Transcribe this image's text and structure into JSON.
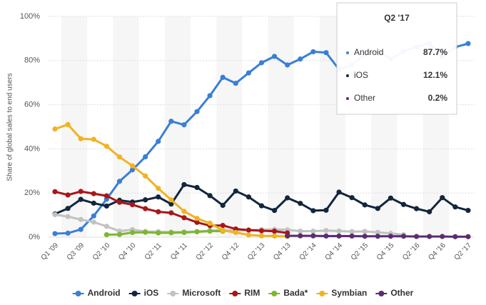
{
  "chart_data": {
    "type": "line",
    "y_axis_label": "Share of global sales to end users",
    "categories": [
      "Q1 '09",
      null,
      "Q3 '09",
      null,
      "Q2 '10",
      null,
      "Q4 '10",
      null,
      "Q2 '11",
      null,
      "Q4 '11",
      null,
      "Q2 '12",
      null,
      "Q4 '12",
      null,
      "Q2 '13",
      null,
      "Q4 '13",
      null,
      "Q2 '14",
      null,
      "Q4 '14",
      null,
      "Q2 '15",
      null,
      "Q4 '15",
      null,
      "Q2 '16",
      null,
      "Q4 '16",
      null,
      "Q2 '17"
    ],
    "ylim": [
      0,
      100
    ],
    "yticks": [
      {
        "value": 0,
        "label": "0%"
      },
      {
        "value": 20,
        "label": "20%"
      },
      {
        "value": 40,
        "label": "40%"
      },
      {
        "value": 60,
        "label": "60%"
      },
      {
        "value": 80,
        "label": "80%"
      },
      {
        "value": 100,
        "label": "100%"
      }
    ],
    "grid": true,
    "legend": "bottom",
    "series": [
      {
        "name": "Android",
        "color": "#3a7fd5",
        "values": [
          1.6,
          1.8,
          3.5,
          9.6,
          17.2,
          25.3,
          30.5,
          36.4,
          43.4,
          52.5,
          50.9,
          56.9,
          64.1,
          72.4,
          69.7,
          74.4,
          79.0,
          81.9,
          78.0,
          80.7,
          84.0,
          83.6,
          76.0,
          78.0,
          82.8,
          84.7,
          80.7,
          84.1,
          86.2,
          87.8,
          81.7,
          86.1,
          87.7
        ]
      },
      {
        "name": "iOS",
        "color": "#12263d",
        "values": [
          10.5,
          13.0,
          17.1,
          15.4,
          14.1,
          16.7,
          15.9,
          16.9,
          18.2,
          15.0,
          23.8,
          22.5,
          18.8,
          14.4,
          20.9,
          18.2,
          14.2,
          12.1,
          17.8,
          15.3,
          12.0,
          12.2,
          20.4,
          17.9,
          14.6,
          13.0,
          17.7,
          14.8,
          12.9,
          11.5,
          17.9,
          13.7,
          12.1
        ]
      },
      {
        "name": "Microsoft",
        "color": "#c2c2c2",
        "values": [
          10.2,
          9.3,
          8.0,
          6.8,
          4.9,
          2.7,
          3.4,
          2.6,
          2.5,
          2.3,
          2.4,
          2.6,
          3.0,
          3.2,
          2.9,
          3.2,
          3.4,
          3.5,
          3.3,
          2.7,
          2.7,
          3.0,
          2.8,
          2.5,
          2.6,
          2.2,
          1.7,
          1.1,
          null,
          null,
          null,
          null,
          null
        ]
      },
      {
        "name": "RIM",
        "color": "#a8161a",
        "values": [
          20.6,
          19.1,
          20.7,
          19.7,
          18.7,
          15.8,
          14.7,
          12.9,
          11.5,
          11.0,
          8.8,
          6.7,
          5.2,
          5.3,
          3.7,
          3.2,
          2.9,
          2.7,
          1.9,
          null,
          null,
          null,
          null,
          null,
          null,
          null,
          null,
          null,
          null,
          null,
          null,
          null,
          null
        ]
      },
      {
        "name": "Bada*",
        "color": "#7cb82f",
        "values": [
          null,
          null,
          null,
          null,
          1.1,
          1.2,
          2.1,
          2.2,
          1.9,
          2.0,
          2.1,
          2.4,
          2.7,
          2.7,
          null,
          null,
          null,
          null,
          null,
          null,
          null,
          null,
          null,
          null,
          null,
          null,
          null,
          null,
          null,
          null,
          null,
          null,
          null
        ]
      },
      {
        "name": "Symbian",
        "color": "#f0b323",
        "values": [
          49.0,
          51.0,
          44.6,
          44.3,
          41.2,
          36.3,
          32.3,
          27.7,
          22.1,
          16.9,
          11.7,
          8.5,
          6.3,
          3.0,
          2.1,
          1.0,
          0.6,
          0.5,
          0.3,
          null,
          null,
          null,
          null,
          null,
          null,
          null,
          null,
          null,
          null,
          null,
          null,
          null,
          null
        ]
      },
      {
        "name": "Other",
        "color": "#5c2d6d",
        "values": [
          null,
          null,
          null,
          null,
          null,
          null,
          null,
          null,
          null,
          null,
          null,
          null,
          null,
          null,
          null,
          null,
          null,
          null,
          0.6,
          0.6,
          0.6,
          0.5,
          0.5,
          0.5,
          0.4,
          0.4,
          0.4,
          0.4,
          0.3,
          0.3,
          0.3,
          0.2,
          0.2
        ]
      }
    ],
    "tooltip": {
      "title": "Q2 '17",
      "items": [
        {
          "name": "Android",
          "value_label": "87.7%"
        },
        {
          "name": "iOS",
          "value_label": "12.1%"
        },
        {
          "name": "Other",
          "value_label": "0.2%"
        }
      ]
    }
  }
}
